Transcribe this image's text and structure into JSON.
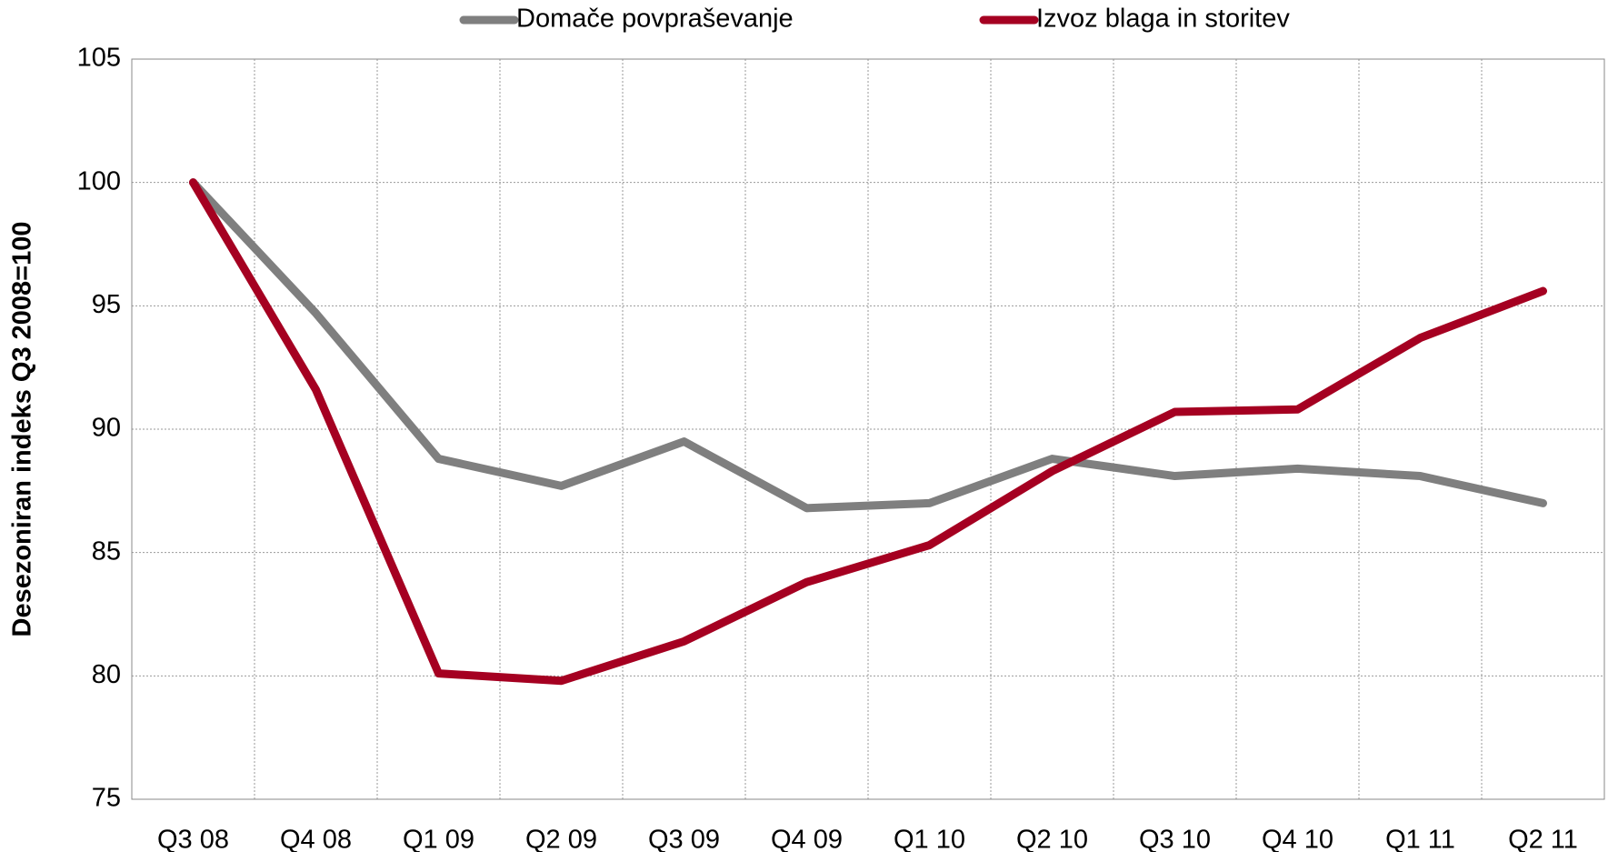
{
  "chart_data": {
    "type": "line",
    "ylabel": "Desezoniran indeks Q3 2008=100",
    "categories": [
      "Q3 08",
      "Q4 08",
      "Q1 09",
      "Q2 09",
      "Q3 09",
      "Q4 09",
      "Q1 10",
      "Q2 10",
      "Q3 10",
      "Q4 10",
      "Q1 11",
      "Q2 11"
    ],
    "series": [
      {
        "name": "Domače povpraševanje",
        "color": "#7f7f7f",
        "values": [
          100,
          94.7,
          88.8,
          87.7,
          89.5,
          86.8,
          87.0,
          88.8,
          88.1,
          88.4,
          88.1,
          87.0
        ]
      },
      {
        "name": "Izvoz blaga in storitev",
        "color": "#a50021",
        "values": [
          100,
          91.6,
          80.1,
          79.8,
          81.4,
          83.8,
          85.3,
          88.3,
          90.7,
          90.8,
          93.7,
          95.6
        ]
      }
    ],
    "ylim": [
      75,
      105
    ],
    "yticks": [
      75,
      80,
      85,
      90,
      95,
      100,
      105
    ],
    "grid": true,
    "legend": "top"
  }
}
